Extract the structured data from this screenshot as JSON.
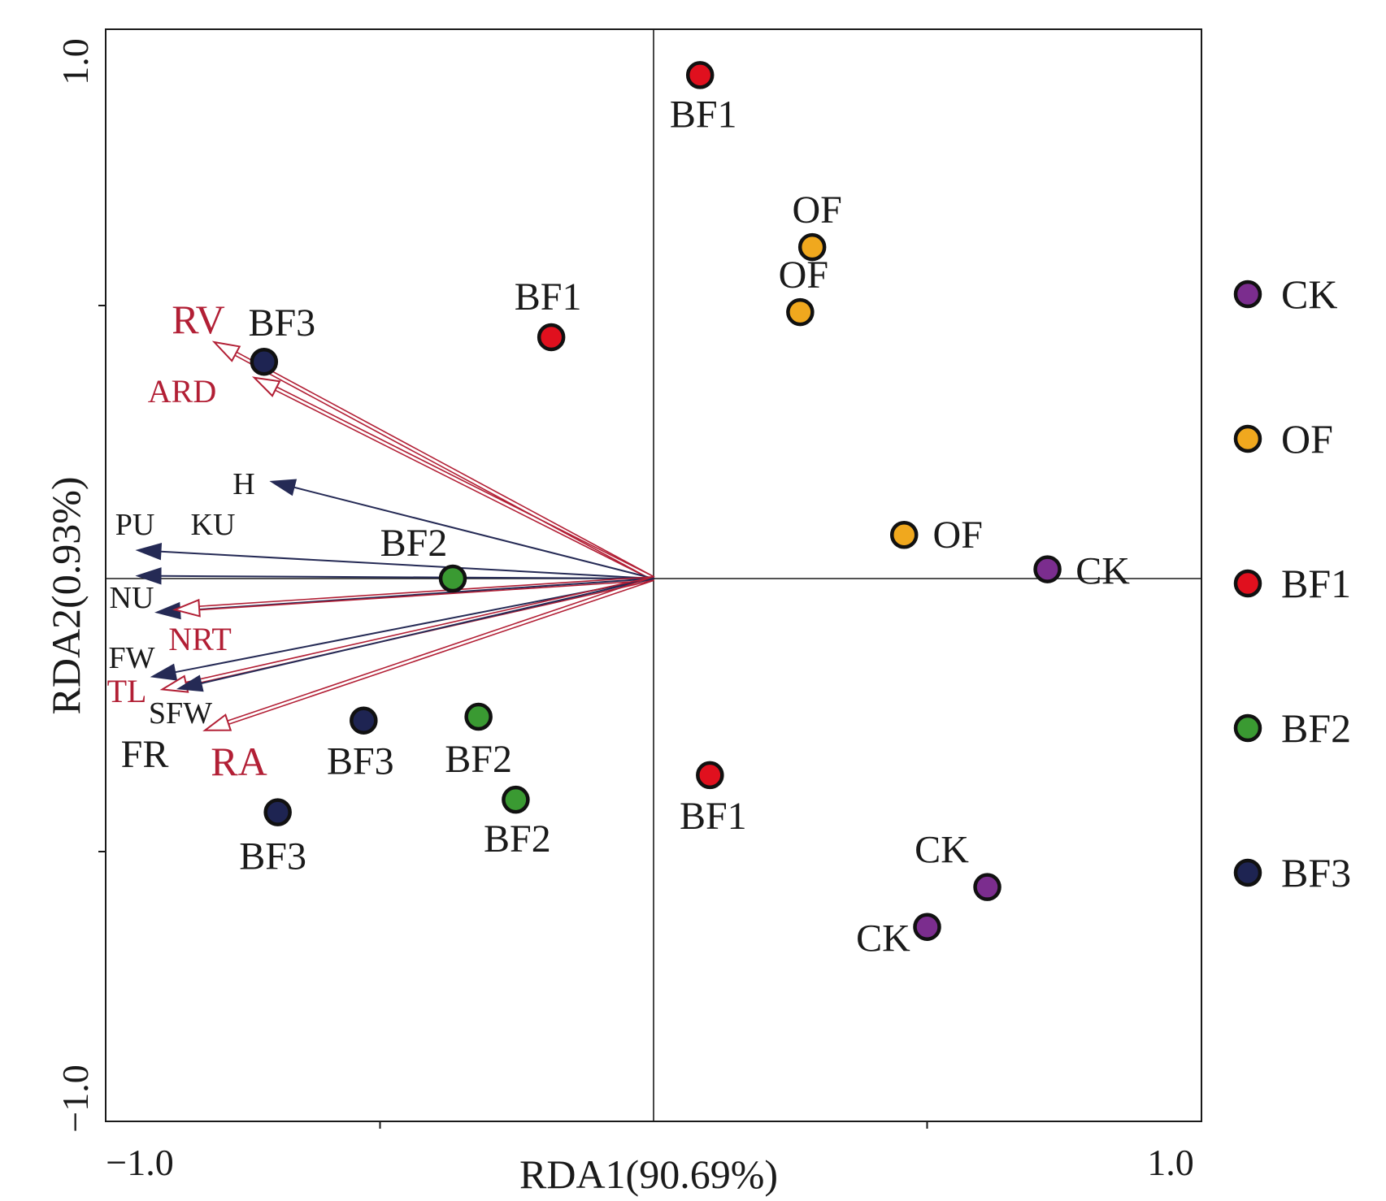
{
  "chart_data": {
    "type": "scatter",
    "xlabel": "RDA1(90.69%)",
    "ylabel": "RDA2(0.93%)",
    "xlim": [
      -1.0,
      1.0
    ],
    "ylim": [
      -1.0,
      1.0
    ],
    "x_tick_labels": [
      "−1.0",
      "1.0"
    ],
    "y_tick_labels": [
      "−1.0",
      "1.0"
    ],
    "grid": false,
    "legend_position": "right",
    "series": [
      {
        "name": "CK",
        "color": "#7b2d8e",
        "points": [
          {
            "x": 0.72,
            "y": 0.017,
            "label": "CK"
          },
          {
            "x": 0.61,
            "y": -0.565,
            "label": "CK"
          },
          {
            "x": 0.5,
            "y": -0.638,
            "label": "CK"
          }
        ]
      },
      {
        "name": "OF",
        "color": "#f0a81e",
        "points": [
          {
            "x": 0.29,
            "y": 0.607,
            "label": "OF"
          },
          {
            "x": 0.268,
            "y": 0.488,
            "label": "OF"
          },
          {
            "x": 0.458,
            "y": 0.08,
            "label": "OF"
          }
        ]
      },
      {
        "name": "BF1",
        "color": "#e0101e",
        "points": [
          {
            "x": 0.085,
            "y": 0.922,
            "label": "BF1"
          },
          {
            "x": -0.187,
            "y": 0.442,
            "label": "BF1"
          },
          {
            "x": 0.103,
            "y": -0.36,
            "label": "BF1"
          }
        ]
      },
      {
        "name": "BF2",
        "color": "#3a9a32",
        "points": [
          {
            "x": -0.367,
            "y": 0.0,
            "label": "BF2"
          },
          {
            "x": -0.32,
            "y": -0.253,
            "label": "BF2"
          },
          {
            "x": -0.252,
            "y": -0.405,
            "label": "BF2"
          }
        ]
      },
      {
        "name": "BF3",
        "color": "#1e2452",
        "points": [
          {
            "x": -0.712,
            "y": 0.397,
            "label": "BF3"
          },
          {
            "x": -0.53,
            "y": -0.26,
            "label": "BF3"
          },
          {
            "x": -0.687,
            "y": -0.428,
            "label": "BF3"
          }
        ]
      }
    ],
    "vectors": [
      {
        "name": "RV",
        "x": -0.803,
        "y": 0.433,
        "color": "#b21f35",
        "style": "open"
      },
      {
        "name": "ARD",
        "x": -0.73,
        "y": 0.368,
        "color": "#b21f35",
        "style": "open"
      },
      {
        "name": "H",
        "x": -0.7,
        "y": 0.178,
        "color": "#252a55",
        "style": "filled"
      },
      {
        "name": "PU",
        "x": -0.945,
        "y": 0.052,
        "color": "#252a55",
        "style": "filled"
      },
      {
        "name": "KU",
        "x": -0.945,
        "y": 0.005,
        "color": "#252a55",
        "style": "filled"
      },
      {
        "name": "NU",
        "x": -0.91,
        "y": -0.062,
        "color": "#252a55",
        "style": "filled"
      },
      {
        "name": "NRT",
        "x": -0.875,
        "y": -0.057,
        "color": "#b21f35",
        "style": "open"
      },
      {
        "name": "FW",
        "x": -0.918,
        "y": -0.18,
        "color": "#252a55",
        "style": "filled"
      },
      {
        "name": "TL",
        "x": -0.898,
        "y": -0.203,
        "color": "#b21f35",
        "style": "open"
      },
      {
        "name": "SFW",
        "x": -0.87,
        "y": -0.202,
        "color": "#252a55",
        "style": "filled"
      },
      {
        "name": "FR",
        "x": -0.87,
        "y": -0.202,
        "color": "#252a55",
        "style": "filled"
      },
      {
        "name": "RA",
        "x": -0.82,
        "y": -0.278,
        "color": "#b21f35",
        "style": "open"
      }
    ],
    "legend": [
      {
        "name": "CK",
        "color": "#7b2d8e"
      },
      {
        "name": "OF",
        "color": "#f0a81e"
      },
      {
        "name": "BF1",
        "color": "#e0101e"
      },
      {
        "name": "BF2",
        "color": "#3a9a32"
      },
      {
        "name": "BF3",
        "color": "#1e2452"
      }
    ]
  }
}
